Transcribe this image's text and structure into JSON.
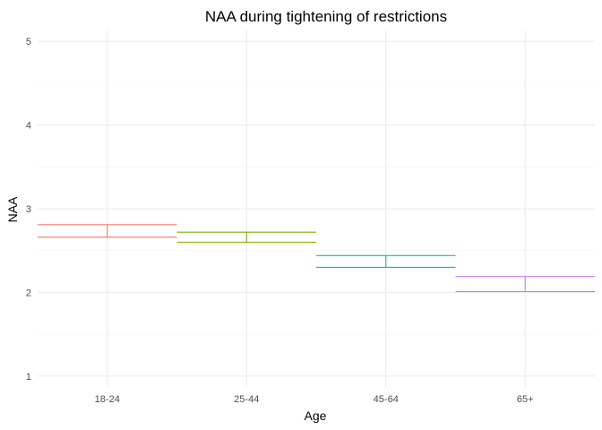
{
  "chart_data": {
    "type": "errorbar",
    "title": "NAA during tightening of restrictions",
    "xlabel": "Age",
    "ylabel": "NAA",
    "categories": [
      "18-24",
      "25-44",
      "45-64",
      "65+"
    ],
    "series": [
      {
        "name": "18-24",
        "color": "#F8766D",
        "lower": 2.66,
        "upper": 2.81
      },
      {
        "name": "25-44",
        "color": "#7CAE00",
        "lower": 2.6,
        "upper": 2.72
      },
      {
        "name": "45-64",
        "color": "#00BFC4",
        "lower": 2.3,
        "upper": 2.44
      },
      {
        "name": "65+",
        "color": "#C77CFF",
        "lower": 2.01,
        "upper": 2.19
      }
    ],
    "yticks": [
      1,
      2,
      3,
      4,
      5
    ],
    "ylim": [
      0.87,
      5.13
    ],
    "grid": true,
    "legend": "none"
  }
}
